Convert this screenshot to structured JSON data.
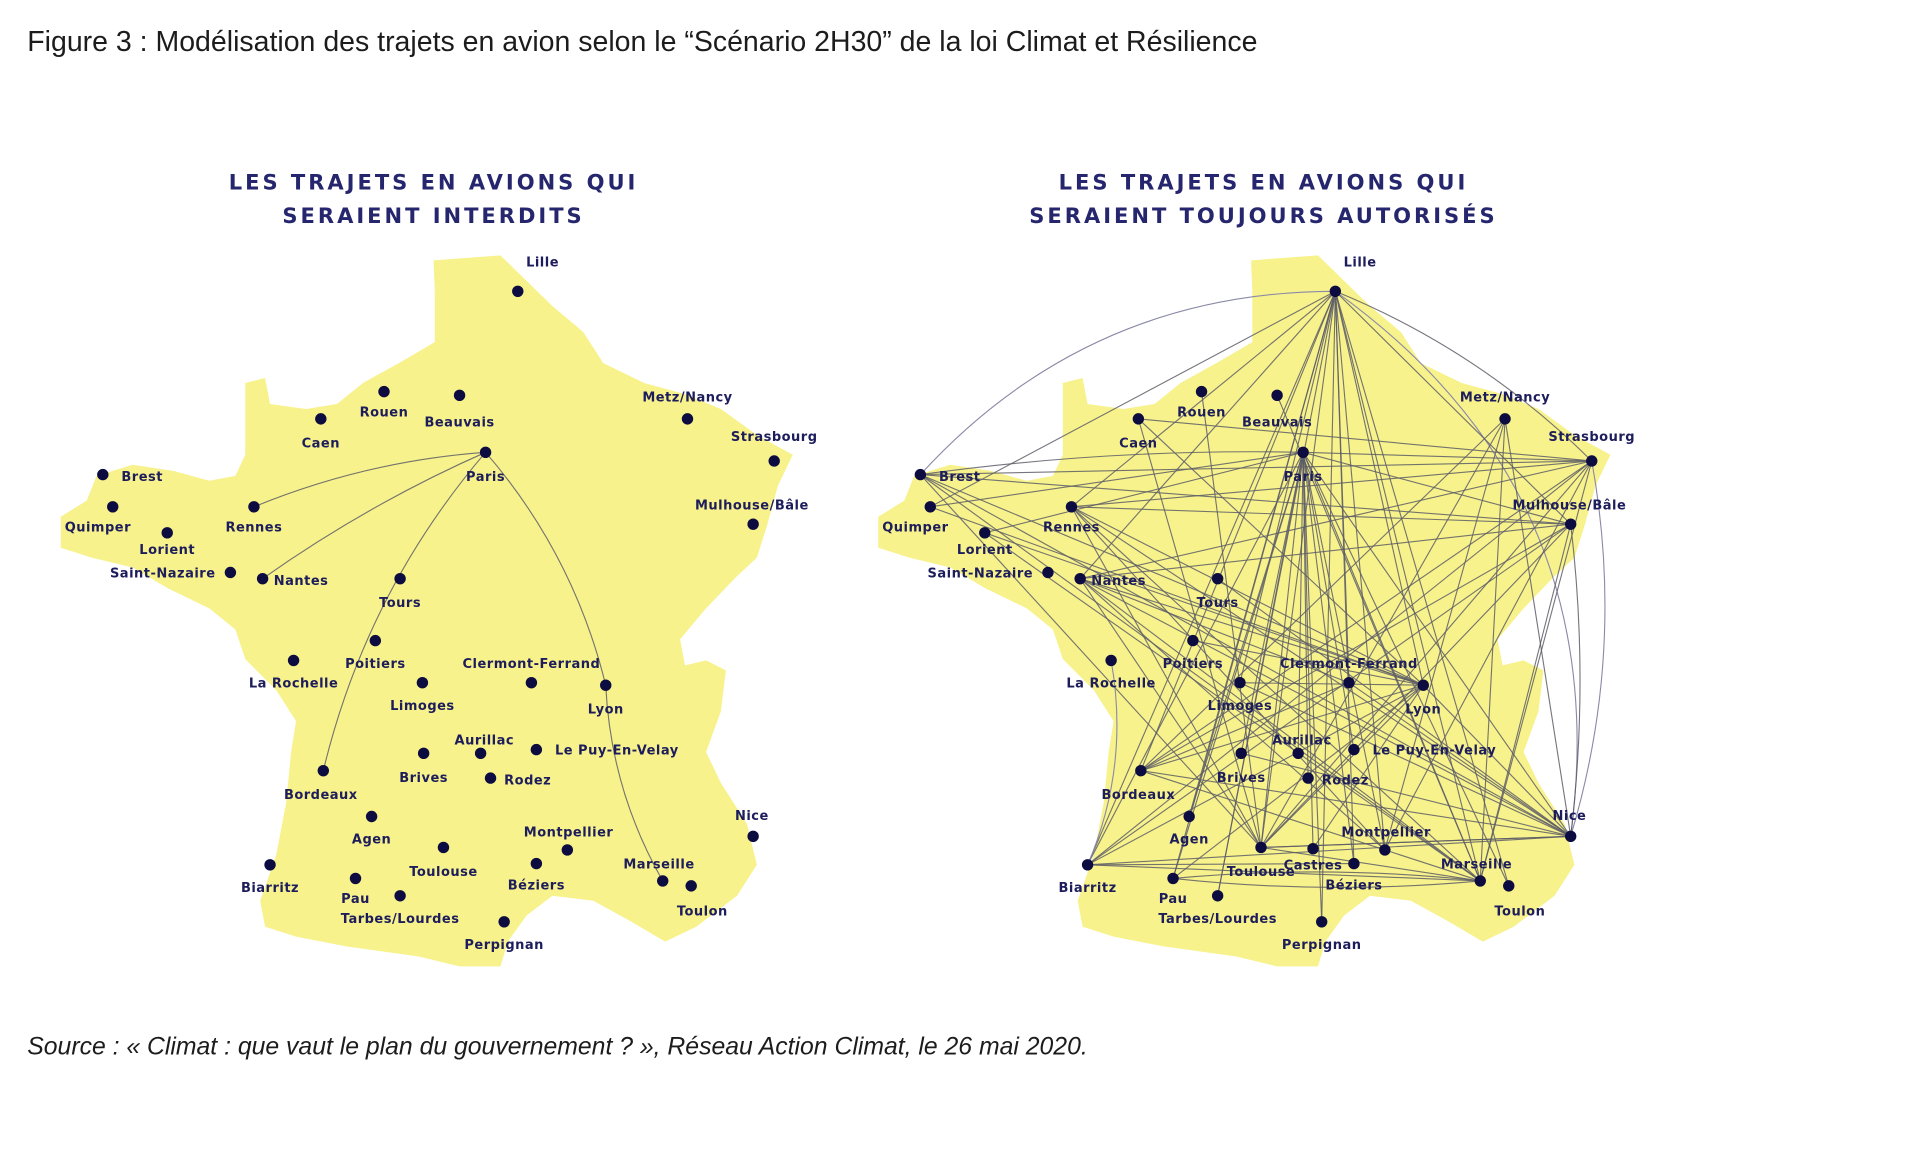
{
  "figure_title": "Figure 3 : Modélisation des trajets en avion selon le “Scénario 2H30” de la loi Climat et Résilience",
  "source": "Source : « Climat : que vaut le plan du gouvernement ? », Réseau Action Climat, le 26 mai 2020.",
  "colors": {
    "land": "#f7f28c",
    "dot": "#0c0c40",
    "heading": "#26266e",
    "route": "#5d5d66"
  },
  "maps": [
    {
      "heading_lines": [
        "LES TRAJETS EN AVIONS QUI",
        "SERAIENT INTERDITS"
      ],
      "cities": [
        "Lille",
        "Rouen",
        "Beauvais",
        "Caen",
        "Paris",
        "Metz/Nancy",
        "Strasbourg",
        "Brest",
        "Quimper",
        "Rennes",
        "Lorient",
        "Mulhouse/Bâle",
        "Saint-Nazaire",
        "Nantes",
        "Tours",
        "Poitiers",
        "La Rochelle",
        "Clermont-Ferrand",
        "Limoges",
        "Lyon",
        "Aurillac",
        "Le Puy-En-Velay",
        "Brives",
        "Rodez",
        "Bordeaux",
        "Agen",
        "Nice",
        "Montpellier",
        "Toulouse",
        "Béziers",
        "Biarritz",
        "Marseille",
        "Toulon",
        "Pau",
        "Tarbes/Lourdes",
        "Perpignan"
      ],
      "routes": [
        [
          "Paris",
          "Rennes"
        ],
        [
          "Paris",
          "Nantes"
        ],
        [
          "Paris",
          "Bordeaux"
        ],
        [
          "Paris",
          "Lyon"
        ],
        [
          "Lyon",
          "Marseille"
        ]
      ]
    },
    {
      "heading_lines": [
        "LES TRAJETS EN AVIONS QUI",
        "SERAIENT TOUJOURS AUTORISÉS"
      ],
      "cities": [
        "Lille",
        "Rouen",
        "Beauvais",
        "Caen",
        "Paris",
        "Metz/Nancy",
        "Strasbourg",
        "Brest",
        "Quimper",
        "Rennes",
        "Lorient",
        "Mulhouse/Bâle",
        "Saint-Nazaire",
        "Nantes",
        "Tours",
        "Poitiers",
        "La Rochelle",
        "Clermont-Ferrand",
        "Limoges",
        "Lyon",
        "Aurillac",
        "Le Puy-En-Velay",
        "Brives",
        "Rodez",
        "Bordeaux",
        "Agen",
        "Nice",
        "Montpellier",
        "Toulouse",
        "Castres",
        "Béziers",
        "Biarritz",
        "Marseille",
        "Toulon",
        "Pau",
        "Tarbes/Lourdes",
        "Perpignan"
      ],
      "routes": [
        [
          "Lille",
          "Brest"
        ],
        [
          "Lille",
          "Quimper"
        ],
        [
          "Lille",
          "Rennes"
        ],
        [
          "Lille",
          "Nantes"
        ],
        [
          "Lille",
          "Bordeaux"
        ],
        [
          "Lille",
          "Biarritz"
        ],
        [
          "Lille",
          "Pau"
        ],
        [
          "Lille",
          "Toulouse"
        ],
        [
          "Lille",
          "Montpellier"
        ],
        [
          "Lille",
          "Marseille"
        ],
        [
          "Lille",
          "Nice"
        ],
        [
          "Lille",
          "Lyon"
        ],
        [
          "Lille",
          "Limoges"
        ],
        [
          "Lille",
          "Clermont-Ferrand"
        ],
        [
          "Lille",
          "Perpignan"
        ],
        [
          "Lille",
          "Béziers"
        ],
        [
          "Lille",
          "Toulon"
        ],
        [
          "Lille",
          "Strasbourg"
        ],
        [
          "Lille",
          "Mulhouse/Bâle"
        ],
        [
          "Lille",
          "Tarbes/Lourdes"
        ],
        [
          "Lille",
          "Agen"
        ],
        [
          "Paris",
          "Brest"
        ],
        [
          "Paris",
          "Quimper"
        ],
        [
          "Paris",
          "Lorient"
        ],
        [
          "Paris",
          "Biarritz"
        ],
        [
          "Paris",
          "Pau"
        ],
        [
          "Paris",
          "Toulouse"
        ],
        [
          "Paris",
          "Castres"
        ],
        [
          "Paris",
          "Montpellier"
        ],
        [
          "Paris",
          "Marseille"
        ],
        [
          "Paris",
          "Nice"
        ],
        [
          "Paris",
          "Toulon"
        ],
        [
          "Paris",
          "Perpignan"
        ],
        [
          "Paris",
          "Béziers"
        ],
        [
          "Paris",
          "Rodez"
        ],
        [
          "Paris",
          "Aurillac"
        ],
        [
          "Paris",
          "Brives"
        ],
        [
          "Paris",
          "Agen"
        ],
        [
          "Paris",
          "Tarbes/Lourdes"
        ],
        [
          "Paris",
          "Le Puy-En-Velay"
        ],
        [
          "Paris",
          "Strasbourg"
        ],
        [
          "Paris",
          "Mulhouse/Bâle"
        ],
        [
          "Strasbourg",
          "Brest"
        ],
        [
          "Strasbourg",
          "Nantes"
        ],
        [
          "Strasbourg",
          "Rennes"
        ],
        [
          "Strasbourg",
          "Bordeaux"
        ],
        [
          "Strasbourg",
          "Toulouse"
        ],
        [
          "Strasbourg",
          "Marseille"
        ],
        [
          "Strasbourg",
          "Nice"
        ],
        [
          "Strasbourg",
          "Montpellier"
        ],
        [
          "Strasbourg",
          "Biarritz"
        ],
        [
          "Strasbourg",
          "Caen"
        ],
        [
          "Mulhouse/Bâle",
          "Nantes"
        ],
        [
          "Mulhouse/Bâle",
          "Rennes"
        ],
        [
          "Mulhouse/Bâle",
          "Bordeaux"
        ],
        [
          "Mulhouse/Bâle",
          "Toulouse"
        ],
        [
          "Mulhouse/Bâle",
          "Marseille"
        ],
        [
          "Mulhouse/Bâle",
          "Nice"
        ],
        [
          "Mulhouse/Bâle",
          "Biarritz"
        ],
        [
          "Mulhouse/Bâle",
          "Brest"
        ],
        [
          "Nice",
          "Brest"
        ],
        [
          "Nice",
          "Nantes"
        ],
        [
          "Nice",
          "Bordeaux"
        ],
        [
          "Nice",
          "Rennes"
        ],
        [
          "Nice",
          "Lyon"
        ],
        [
          "Nice",
          "Biarritz"
        ],
        [
          "Nice",
          "Toulouse"
        ],
        [
          "Nice",
          "Metz/Nancy"
        ],
        [
          "Nice",
          "Limoges"
        ],
        [
          "Nice",
          "Clermont-Ferrand"
        ],
        [
          "Nice",
          "Brives"
        ],
        [
          "Brest",
          "Lyon"
        ],
        [
          "Brest",
          "Marseille"
        ],
        [
          "Brest",
          "Toulouse"
        ],
        [
          "Lyon",
          "Nantes"
        ],
        [
          "Lyon",
          "Rennes"
        ],
        [
          "Lyon",
          "Bordeaux"
        ],
        [
          "Lyon",
          "Biarritz"
        ],
        [
          "Lyon",
          "Toulouse"
        ],
        [
          "Lyon",
          "Quimper"
        ],
        [
          "Lyon",
          "Lorient"
        ],
        [
          "Lyon",
          "Pau"
        ],
        [
          "Lyon",
          "Poitiers"
        ],
        [
          "Lyon",
          "Limoges"
        ],
        [
          "Marseille",
          "Nantes"
        ],
        [
          "Marseille",
          "Rennes"
        ],
        [
          "Marseille",
          "Bordeaux"
        ],
        [
          "Marseille",
          "Biarritz"
        ],
        [
          "Marseille",
          "Metz/Nancy"
        ],
        [
          "Marseille",
          "Toulouse"
        ],
        [
          "Marseille",
          "Pau"
        ],
        [
          "Marseille",
          "Lorient"
        ],
        [
          "Nantes",
          "Toulouse"
        ],
        [
          "Nantes",
          "Montpellier"
        ],
        [
          "Nantes",
          "Clermont-Ferrand"
        ],
        [
          "Bordeaux",
          "Metz/Nancy"
        ],
        [
          "Bordeaux",
          "Clermont-Ferrand"
        ],
        [
          "Biarritz",
          "Béziers"
        ],
        [
          "Biarritz",
          "La Rochelle"
        ],
        [
          "Metz/Nancy",
          "Toulouse"
        ],
        [
          "Metz/Nancy",
          "Montpellier"
        ],
        [
          "Rennes",
          "Montpellier"
        ],
        [
          "Rennes",
          "Toulouse"
        ],
        [
          "Caen",
          "Lyon"
        ],
        [
          "Caen",
          "Toulouse"
        ],
        [
          "Rouen",
          "Toulouse"
        ],
        [
          "Beauvais",
          "Marseille"
        ],
        [
          "Tours",
          "Nice"
        ],
        [
          "Pau",
          "Marseille"
        ],
        [
          "Toulouse",
          "Nice"
        ],
        [
          "Castres",
          "Lyon"
        ]
      ]
    }
  ]
}
